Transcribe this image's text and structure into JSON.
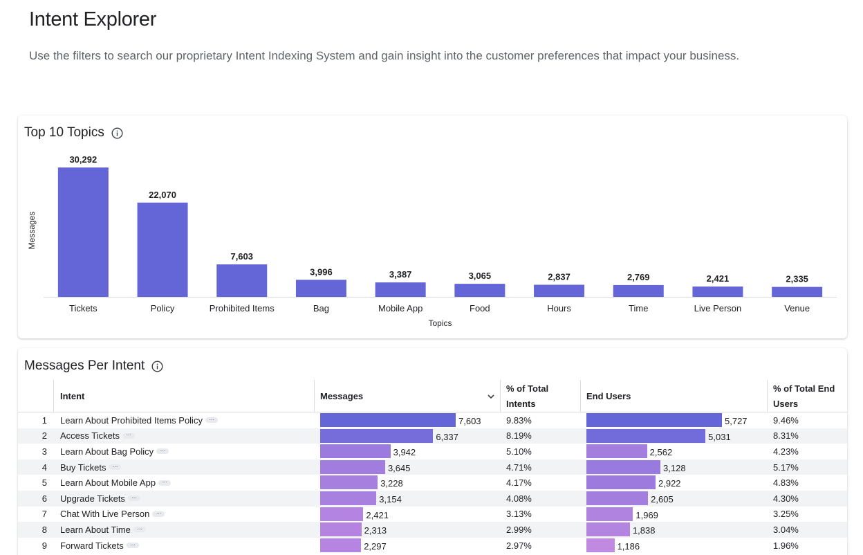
{
  "header": {
    "title": "Intent Explorer",
    "subtitle": "Use the filters to search our proprietary Intent Indexing System and gain insight into the customer preferences that impact your business."
  },
  "topics_card": {
    "title": "Top 10 Topics",
    "info_icon": "info-icon"
  },
  "chart_data": {
    "type": "bar",
    "title": "Top 10 Topics",
    "xlabel": "Topics",
    "ylabel": "Messages",
    "categories": [
      "Tickets",
      "Policy",
      "Prohibited Items",
      "Bag",
      "Mobile App",
      "Food",
      "Hours",
      "Time",
      "Live Person",
      "Venue"
    ],
    "values": [
      30292,
      22070,
      7603,
      3996,
      3387,
      3065,
      2837,
      2769,
      2421,
      2335
    ],
    "value_labels": [
      "30,292",
      "22,070",
      "7,603",
      "3,996",
      "3,387",
      "3,065",
      "2,837",
      "2,769",
      "2,421",
      "2,335"
    ],
    "ylim": [
      0,
      30292
    ],
    "grid": false,
    "bar_color": "#6466d8"
  },
  "intents_card": {
    "title": "Messages Per Intent",
    "info_icon": "info-icon",
    "columns": {
      "intent": "Intent",
      "messages": "Messages",
      "pct_total_line1": "% of Total",
      "pct_total_line2": "Intents",
      "end_users": "End Users",
      "pct_end_line1": "% of Total End",
      "pct_end_line2": "Users"
    },
    "sort_icon": "chevron-down-icon",
    "max_messages": 7603,
    "max_end_users": 5727,
    "rows": [
      {
        "num": "1",
        "intent": "Learn About Prohibited Items Policy",
        "messages": 7603,
        "messages_label": "7,603",
        "pct_total": "9.83%",
        "end_users": 5727,
        "end_users_label": "5,727",
        "pct_end": "9.46%"
      },
      {
        "num": "2",
        "intent": "Access Tickets",
        "messages": 6337,
        "messages_label": "6,337",
        "pct_total": "8.19%",
        "end_users": 5031,
        "end_users_label": "5,031",
        "pct_end": "8.31%"
      },
      {
        "num": "3",
        "intent": "Learn About Bag Policy",
        "messages": 3942,
        "messages_label": "3,942",
        "pct_total": "5.10%",
        "end_users": 2562,
        "end_users_label": "2,562",
        "pct_end": "4.23%"
      },
      {
        "num": "4",
        "intent": "Buy Tickets",
        "messages": 3645,
        "messages_label": "3,645",
        "pct_total": "4.71%",
        "end_users": 3128,
        "end_users_label": "3,128",
        "pct_end": "5.17%"
      },
      {
        "num": "5",
        "intent": "Learn About Mobile App",
        "messages": 3228,
        "messages_label": "3,228",
        "pct_total": "4.17%",
        "end_users": 2922,
        "end_users_label": "2,922",
        "pct_end": "4.83%"
      },
      {
        "num": "6",
        "intent": "Upgrade Tickets",
        "messages": 3154,
        "messages_label": "3,154",
        "pct_total": "4.08%",
        "end_users": 2605,
        "end_users_label": "2,605",
        "pct_end": "4.30%"
      },
      {
        "num": "7",
        "intent": "Chat With Live Person",
        "messages": 2421,
        "messages_label": "2,421",
        "pct_total": "3.13%",
        "end_users": 1969,
        "end_users_label": "1,969",
        "pct_end": "3.25%"
      },
      {
        "num": "8",
        "intent": "Learn About Time",
        "messages": 2313,
        "messages_label": "2,313",
        "pct_total": "2.99%",
        "end_users": 1838,
        "end_users_label": "1,838",
        "pct_end": "3.04%"
      },
      {
        "num": "9",
        "intent": "Forward Tickets",
        "messages": 2297,
        "messages_label": "2,297",
        "pct_total": "2.97%",
        "end_users": 1186,
        "end_users_label": "1,186",
        "pct_end": "1.96%"
      }
    ]
  }
}
